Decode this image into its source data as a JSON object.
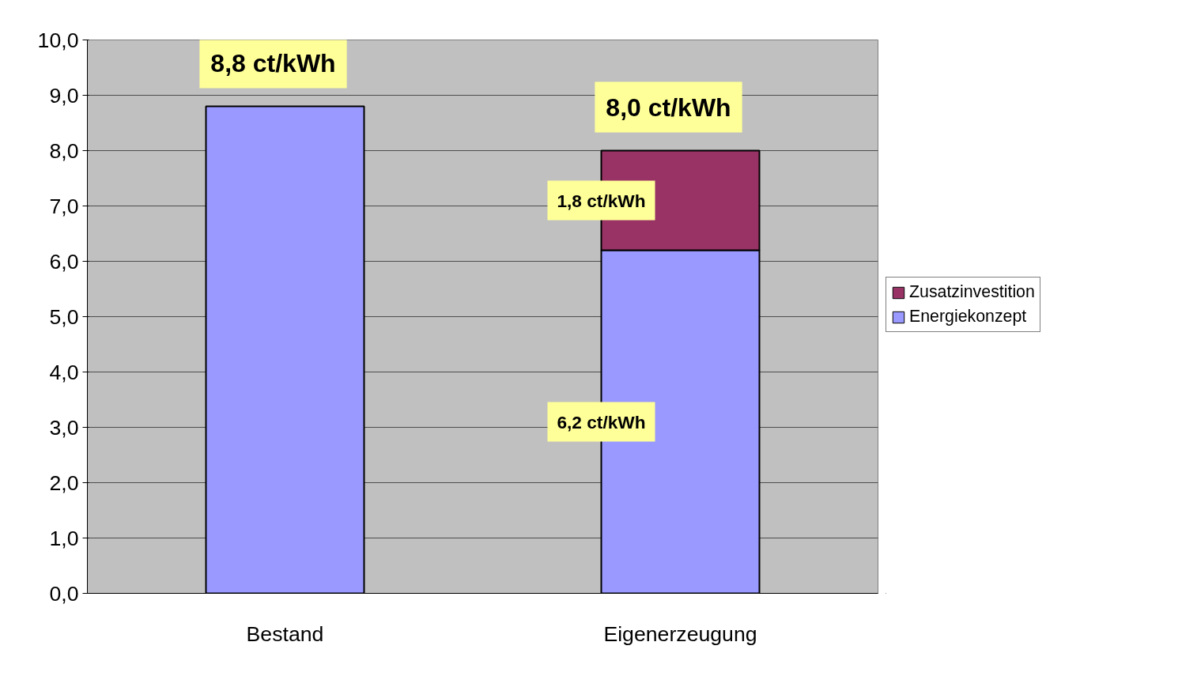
{
  "chart_data": {
    "type": "bar",
    "stacked": true,
    "categories": [
      "Bestand",
      "Eigenerzeugung"
    ],
    "series": [
      {
        "name": "Energiekonzept",
        "color": "#9999ff",
        "values": [
          8.8,
          6.2
        ],
        "value_labels": [
          null,
          "6,2 ct/kWh"
        ]
      },
      {
        "name": "Zusatzinvestition",
        "color": "#993366",
        "values": [
          null,
          1.8
        ],
        "value_labels": [
          null,
          "1,8 ct/kWh"
        ]
      }
    ],
    "totals": [
      "8,8 ct/kWh",
      "8,0 ct/kWh"
    ],
    "ylim": [
      0,
      10
    ],
    "yticks": [
      {
        "value": 0,
        "label": "0,0"
      },
      {
        "value": 1,
        "label": "1,0"
      },
      {
        "value": 2,
        "label": "2,0"
      },
      {
        "value": 3,
        "label": "3,0"
      },
      {
        "value": 4,
        "label": "4,0"
      },
      {
        "value": 5,
        "label": "5,0"
      },
      {
        "value": 6,
        "label": "6,0"
      },
      {
        "value": 7,
        "label": "7,0"
      },
      {
        "value": 8,
        "label": "8,0"
      },
      {
        "value": 9,
        "label": "9,0"
      },
      {
        "value": 10,
        "label": "10,0"
      }
    ],
    "grid": "y",
    "legend": "right"
  }
}
